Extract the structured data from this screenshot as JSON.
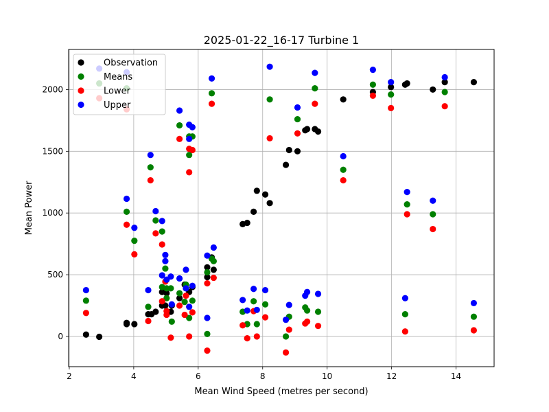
{
  "chart_data": {
    "type": "scatter",
    "title": "2025-01-22_16-17 Turbine 1",
    "xlabel": "Mean Wind Speed (metres per second)",
    "ylabel": "Mean Power",
    "xlim": [
      1.98,
      15.18
    ],
    "ylim": [
      -245,
      2325
    ],
    "xticks": [
      2,
      4,
      6,
      8,
      10,
      12,
      14
    ],
    "yticks": [
      0,
      500,
      1000,
      1500,
      2000
    ],
    "grid": true,
    "legend_position": "upper-left",
    "series": [
      {
        "name": "Observation",
        "color": "#000000",
        "points": [
          [
            2.52,
            15
          ],
          [
            2.93,
            -3
          ],
          [
            3.78,
            110
          ],
          [
            3.78,
            100
          ],
          [
            4.02,
            100
          ],
          [
            4.45,
            180
          ],
          [
            4.55,
            180
          ],
          [
            4.68,
            200
          ],
          [
            4.88,
            360
          ],
          [
            4.88,
            250
          ],
          [
            4.98,
            250
          ],
          [
            5.02,
            350
          ],
          [
            5.15,
            200
          ],
          [
            5.18,
            250
          ],
          [
            5.42,
            310
          ],
          [
            5.58,
            420
          ],
          [
            5.62,
            390
          ],
          [
            5.72,
            360
          ],
          [
            5.82,
            400
          ],
          [
            6.28,
            560
          ],
          [
            6.28,
            480
          ],
          [
            6.42,
            640
          ],
          [
            6.48,
            540
          ],
          [
            7.38,
            910
          ],
          [
            7.52,
            920
          ],
          [
            7.72,
            1010
          ],
          [
            7.82,
            1180
          ],
          [
            8.08,
            1150
          ],
          [
            8.22,
            1080
          ],
          [
            8.72,
            1390
          ],
          [
            8.82,
            1510
          ],
          [
            9.08,
            1500
          ],
          [
            9.32,
            1670
          ],
          [
            9.38,
            1680
          ],
          [
            9.62,
            1680
          ],
          [
            9.72,
            1660
          ],
          [
            10.5,
            1920
          ],
          [
            11.42,
            1980
          ],
          [
            11.98,
            2020
          ],
          [
            12.42,
            2040
          ],
          [
            12.48,
            2050
          ],
          [
            13.28,
            2000
          ],
          [
            13.65,
            2060
          ],
          [
            14.55,
            2060
          ]
        ]
      },
      {
        "name": "Means",
        "color": "#008000",
        "points": [
          [
            2.52,
            290
          ],
          [
            2.93,
            2050
          ],
          [
            3.78,
            1010
          ],
          [
            3.78,
            2010
          ],
          [
            4.02,
            775
          ],
          [
            4.45,
            240
          ],
          [
            4.52,
            1370
          ],
          [
            4.68,
            940
          ],
          [
            4.88,
            850
          ],
          [
            4.88,
            400
          ],
          [
            4.98,
            550
          ],
          [
            5.02,
            390
          ],
          [
            5.02,
            310
          ],
          [
            5.15,
            390
          ],
          [
            5.18,
            120
          ],
          [
            5.42,
            350
          ],
          [
            5.42,
            1710
          ],
          [
            5.58,
            280
          ],
          [
            5.62,
            420
          ],
          [
            5.72,
            1470
          ],
          [
            5.72,
            1620
          ],
          [
            5.72,
            150
          ],
          [
            5.82,
            1620
          ],
          [
            5.82,
            290
          ],
          [
            6.28,
            20
          ],
          [
            6.28,
            520
          ],
          [
            6.42,
            1970
          ],
          [
            6.42,
            630
          ],
          [
            6.48,
            610
          ],
          [
            7.38,
            200
          ],
          [
            7.52,
            100
          ],
          [
            7.72,
            285
          ],
          [
            7.82,
            100
          ],
          [
            8.08,
            260
          ],
          [
            8.22,
            1920
          ],
          [
            8.72,
            0
          ],
          [
            8.82,
            160
          ],
          [
            9.08,
            1760
          ],
          [
            9.32,
            235
          ],
          [
            9.38,
            210
          ],
          [
            9.62,
            2010
          ],
          [
            9.72,
            200
          ],
          [
            10.5,
            1350
          ],
          [
            11.42,
            2040
          ],
          [
            11.98,
            1960
          ],
          [
            12.42,
            180
          ],
          [
            12.48,
            1070
          ],
          [
            13.28,
            990
          ],
          [
            13.65,
            1980
          ],
          [
            14.55,
            160
          ]
        ]
      },
      {
        "name": "Lower",
        "color": "#ff0000",
        "points": [
          [
            2.52,
            190
          ],
          [
            2.93,
            1930
          ],
          [
            3.78,
            905
          ],
          [
            3.78,
            1840
          ],
          [
            4.02,
            665
          ],
          [
            4.45,
            125
          ],
          [
            4.52,
            1265
          ],
          [
            4.68,
            835
          ],
          [
            4.88,
            745
          ],
          [
            4.88,
            285
          ],
          [
            4.98,
            445
          ],
          [
            5.02,
            205
          ],
          [
            5.02,
            175
          ],
          [
            5.15,
            -10
          ],
          [
            5.42,
            1600
          ],
          [
            5.42,
            250
          ],
          [
            5.58,
            175
          ],
          [
            5.62,
            330
          ],
          [
            5.72,
            1520
          ],
          [
            5.72,
            1330
          ],
          [
            5.72,
            0
          ],
          [
            5.82,
            1510
          ],
          [
            5.82,
            195
          ],
          [
            6.28,
            -115
          ],
          [
            6.28,
            430
          ],
          [
            6.42,
            1885
          ],
          [
            6.48,
            475
          ],
          [
            7.38,
            90
          ],
          [
            7.52,
            -15
          ],
          [
            7.72,
            205
          ],
          [
            7.82,
            0
          ],
          [
            8.08,
            155
          ],
          [
            8.22,
            1605
          ],
          [
            8.72,
            -130
          ],
          [
            8.82,
            55
          ],
          [
            9.08,
            1645
          ],
          [
            9.32,
            105
          ],
          [
            9.38,
            120
          ],
          [
            9.62,
            1885
          ],
          [
            9.72,
            85
          ],
          [
            10.5,
            1265
          ],
          [
            11.42,
            1950
          ],
          [
            11.98,
            1850
          ],
          [
            12.42,
            40
          ],
          [
            12.48,
            990
          ],
          [
            13.28,
            870
          ],
          [
            13.65,
            1865
          ],
          [
            14.55,
            50
          ]
        ]
      },
      {
        "name": "Upper",
        "color": "#0000ff",
        "points": [
          [
            2.52,
            375
          ],
          [
            2.93,
            2170
          ],
          [
            3.78,
            1115
          ],
          [
            3.78,
            2140
          ],
          [
            4.02,
            880
          ],
          [
            4.45,
            375
          ],
          [
            4.52,
            1470
          ],
          [
            4.68,
            1015
          ],
          [
            4.88,
            935
          ],
          [
            4.88,
            495
          ],
          [
            4.98,
            660
          ],
          [
            4.98,
            610
          ],
          [
            5.02,
            460
          ],
          [
            5.15,
            485
          ],
          [
            5.18,
            260
          ],
          [
            5.42,
            1830
          ],
          [
            5.42,
            470
          ],
          [
            5.62,
            540
          ],
          [
            5.62,
            390
          ],
          [
            5.72,
            1715
          ],
          [
            5.72,
            1600
          ],
          [
            5.72,
            240
          ],
          [
            5.82,
            1695
          ],
          [
            5.82,
            410
          ],
          [
            6.28,
            150
          ],
          [
            6.28,
            655
          ],
          [
            6.42,
            2090
          ],
          [
            6.48,
            720
          ],
          [
            7.38,
            295
          ],
          [
            7.52,
            210
          ],
          [
            7.72,
            385
          ],
          [
            7.82,
            215
          ],
          [
            8.08,
            375
          ],
          [
            8.22,
            2185
          ],
          [
            8.72,
            135
          ],
          [
            8.82,
            255
          ],
          [
            9.08,
            1855
          ],
          [
            9.32,
            330
          ],
          [
            9.38,
            360
          ],
          [
            9.62,
            2135
          ],
          [
            9.72,
            345
          ],
          [
            10.5,
            1460
          ],
          [
            11.42,
            2160
          ],
          [
            11.98,
            2060
          ],
          [
            12.42,
            310
          ],
          [
            12.48,
            1170
          ],
          [
            13.28,
            1100
          ],
          [
            13.65,
            2100
          ],
          [
            14.55,
            270
          ]
        ]
      }
    ]
  }
}
